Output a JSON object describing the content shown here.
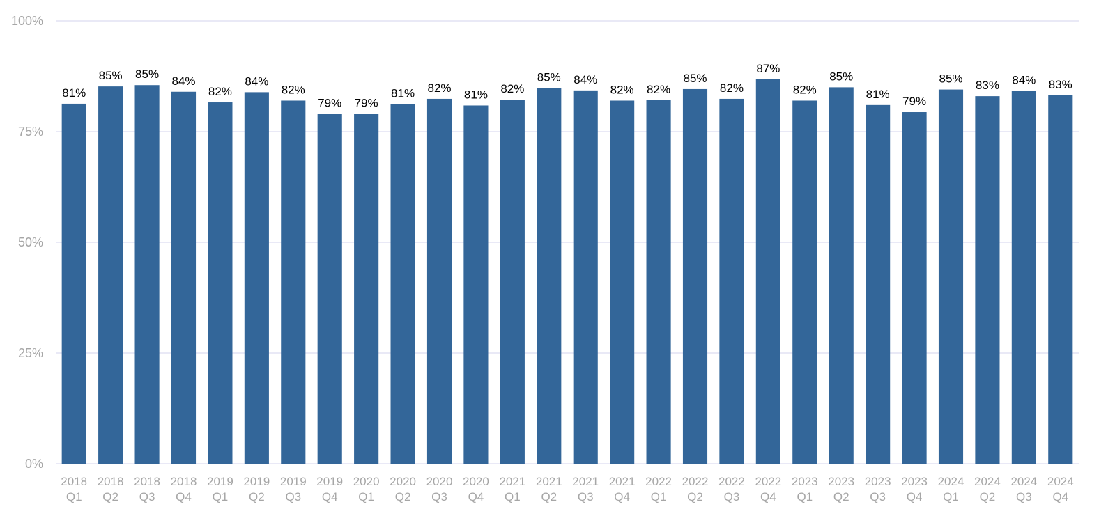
{
  "chart_data": {
    "type": "bar",
    "categories": [
      [
        "2018",
        "Q1"
      ],
      [
        "2018",
        "Q2"
      ],
      [
        "2018",
        "Q3"
      ],
      [
        "2018",
        "Q4"
      ],
      [
        "2019",
        "Q1"
      ],
      [
        "2019",
        "Q2"
      ],
      [
        "2019",
        "Q3"
      ],
      [
        "2019",
        "Q4"
      ],
      [
        "2020",
        "Q1"
      ],
      [
        "2020",
        "Q2"
      ],
      [
        "2020",
        "Q3"
      ],
      [
        "2020",
        "Q4"
      ],
      [
        "2021",
        "Q1"
      ],
      [
        "2021",
        "Q2"
      ],
      [
        "2021",
        "Q3"
      ],
      [
        "2021",
        "Q4"
      ],
      [
        "2022",
        "Q1"
      ],
      [
        "2022",
        "Q2"
      ],
      [
        "2022",
        "Q3"
      ],
      [
        "2022",
        "Q4"
      ],
      [
        "2023",
        "Q1"
      ],
      [
        "2023",
        "Q2"
      ],
      [
        "2023",
        "Q3"
      ],
      [
        "2023",
        "Q4"
      ],
      [
        "2024",
        "Q1"
      ],
      [
        "2024",
        "Q2"
      ],
      [
        "2024",
        "Q3"
      ],
      [
        "2024",
        "Q4"
      ]
    ],
    "values": [
      81.3,
      85.2,
      85.5,
      84.0,
      81.6,
      83.9,
      82.0,
      79.0,
      79.0,
      81.2,
      82.4,
      80.9,
      82.2,
      84.8,
      84.3,
      82.0,
      82.1,
      84.6,
      82.4,
      86.8,
      82.0,
      85.0,
      81.0,
      79.4,
      84.5,
      83.0,
      84.2,
      83.2
    ],
    "labels": [
      "81%",
      "85%",
      "85%",
      "84%",
      "82%",
      "84%",
      "82%",
      "79%",
      "79%",
      "81%",
      "82%",
      "81%",
      "82%",
      "85%",
      "84%",
      "82%",
      "82%",
      "85%",
      "82%",
      "87%",
      "82%",
      "85%",
      "81%",
      "79%",
      "85%",
      "83%",
      "84%",
      "83%"
    ],
    "y_ticks": [
      0,
      25,
      50,
      75,
      100
    ],
    "y_tick_labels": [
      "0%",
      "25%",
      "50%",
      "75%",
      "100%"
    ],
    "ylim": [
      0,
      100
    ],
    "grid": true,
    "bar_color": "#336699",
    "grid_color": "#dcdcf0",
    "tick_label_color": "#a6a6a6",
    "data_label_color": "#000000"
  }
}
